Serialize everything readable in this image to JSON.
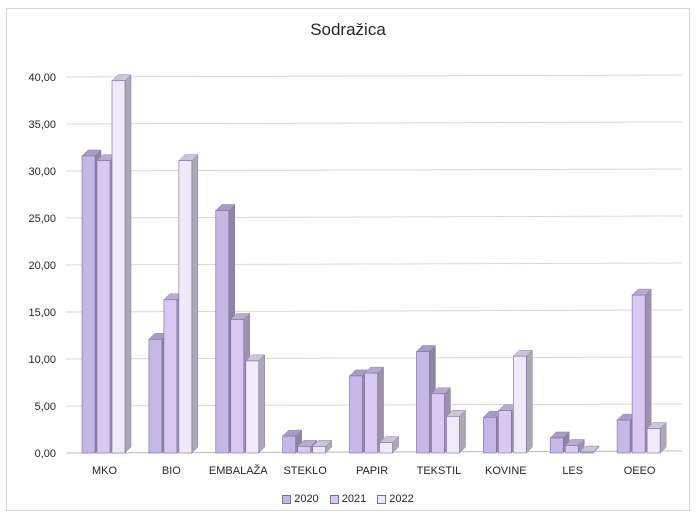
{
  "chart_data": {
    "type": "bar",
    "title": "Sodražica",
    "categories": [
      "MKO",
      "BIO",
      "EMBALAŽA",
      "STEKLO",
      "PAPIR",
      "TEKSTIL",
      "KOVINE",
      "LES",
      "OEEO"
    ],
    "series": [
      {
        "name": "2020",
        "values": [
          31.6,
          12.1,
          25.8,
          1.8,
          8.2,
          10.8,
          3.8,
          1.6,
          3.5
        ],
        "color": "#c5b8e6"
      },
      {
        "name": "2021",
        "values": [
          31.1,
          16.3,
          14.2,
          0.7,
          8.5,
          6.3,
          4.5,
          0.8,
          16.8
        ],
        "color": "#d9c9f2"
      },
      {
        "name": "2022",
        "values": [
          39.6,
          31.1,
          9.8,
          0.7,
          1.1,
          3.9,
          10.3,
          0.1,
          2.6
        ],
        "color": "#efe9fa"
      }
    ],
    "ylim": [
      0,
      40
    ],
    "y_ticks": [
      "0,00",
      "5,00",
      "10,00",
      "15,00",
      "20,00",
      "25,00",
      "30,00",
      "35,00",
      "40,00"
    ],
    "grid": true,
    "legend_position": "bottom"
  }
}
